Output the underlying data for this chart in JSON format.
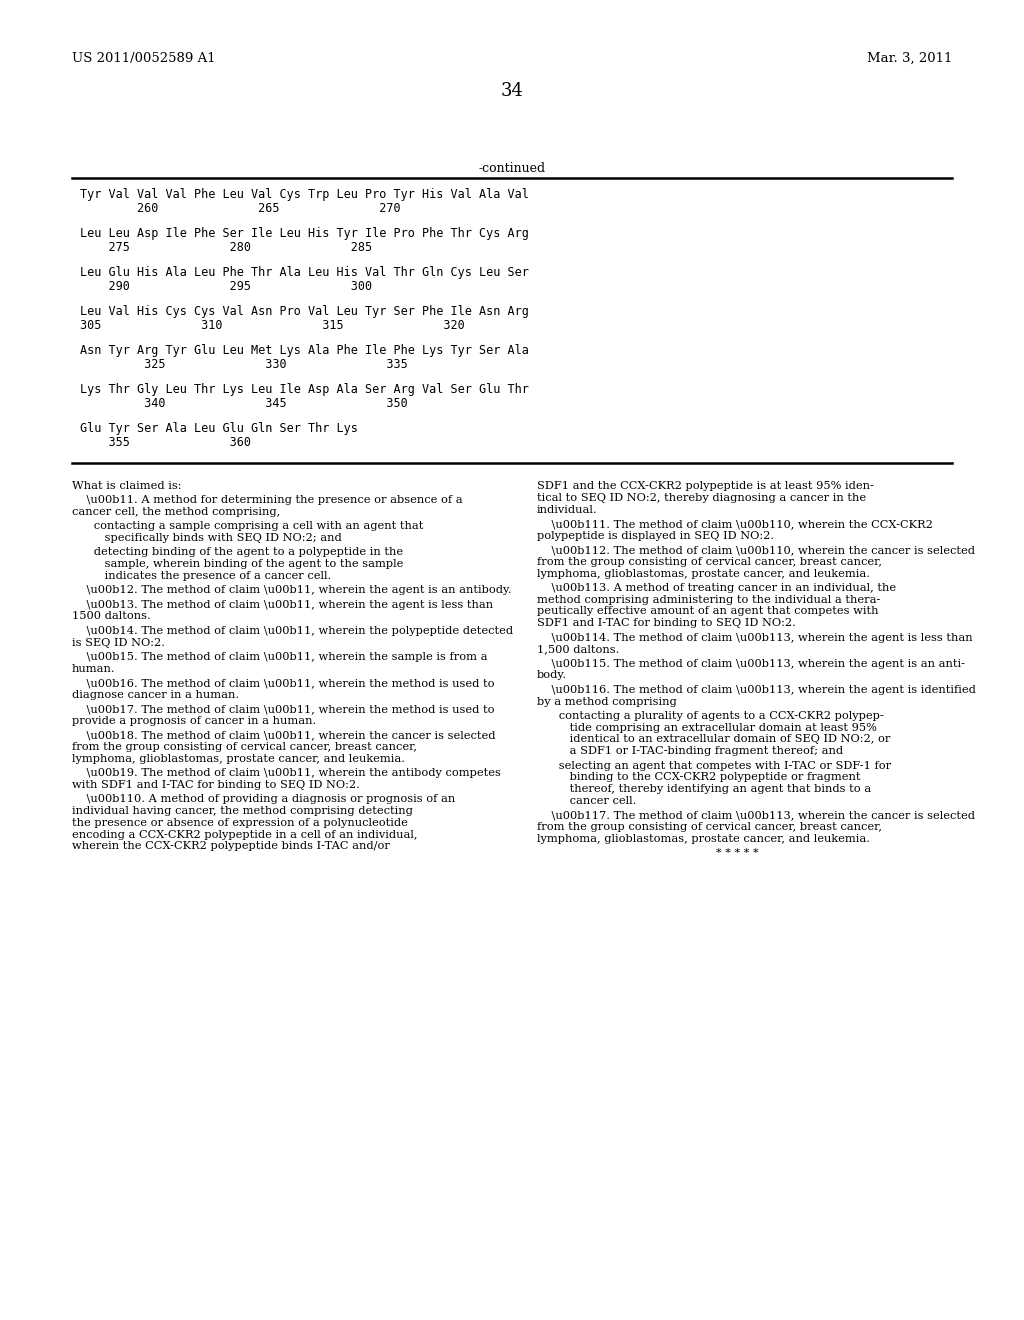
{
  "header_left": "US 2011/0052589 A1",
  "header_right": "Mar. 3, 2011",
  "page_number": "34",
  "continued_label": "-continued",
  "sequence_lines": [
    [
      "Tyr Val Val Val Phe Leu Val Cys Trp Leu Pro Tyr His Val Ala Val",
      "        260              265              270"
    ],
    [
      "Leu Leu Asp Ile Phe Ser Ile Leu His Tyr Ile Pro Phe Thr Cys Arg",
      "    275              280              285"
    ],
    [
      "Leu Glu His Ala Leu Phe Thr Ala Leu His Val Thr Gln Cys Leu Ser",
      "    290              295              300"
    ],
    [
      "Leu Val His Cys Cys Val Asn Pro Val Leu Tyr Ser Phe Ile Asn Arg",
      "305              310              315              320"
    ],
    [
      "Asn Tyr Arg Tyr Glu Leu Met Lys Ala Phe Ile Phe Lys Tyr Ser Ala",
      "         325              330              335"
    ],
    [
      "Lys Thr Gly Leu Thr Lys Leu Ile Asp Ala Ser Arg Val Ser Glu Thr",
      "         340              345              350"
    ],
    [
      "Glu Tyr Ser Ala Leu Glu Gln Ser Thr Lys",
      "    355              360"
    ]
  ],
  "claims_left": [
    [
      false,
      "What is claimed is:"
    ],
    [
      false,
      "    \\u00b11. A method for determining the presence or absence of a\ncancer cell, the method comprising,"
    ],
    [
      false,
      "      contacting a sample comprising a cell with an agent that\n         specifically binds with SEQ ID NO:2; and"
    ],
    [
      false,
      "      detecting binding of the agent to a polypeptide in the\n         sample, wherein binding of the agent to the sample\n         indicates the presence of a cancer cell."
    ],
    [
      false,
      "    \\u00b12. The method of claim \\u00b11, wherein the agent is an antibody."
    ],
    [
      false,
      "    \\u00b13. The method of claim \\u00b11, wherein the agent is less than\n1500 daltons."
    ],
    [
      false,
      "    \\u00b14. The method of claim \\u00b11, wherein the polypeptide detected\nis SEQ ID NO:2."
    ],
    [
      false,
      "    \\u00b15. The method of claim \\u00b11, wherein the sample is from a\nhuman."
    ],
    [
      false,
      "    \\u00b16. The method of claim \\u00b11, wherein the method is used to\ndiagnose cancer in a human."
    ],
    [
      false,
      "    \\u00b17. The method of claim \\u00b11, wherein the method is used to\nprovide a prognosis of cancer in a human."
    ],
    [
      false,
      "    \\u00b18. The method of claim \\u00b11, wherein the cancer is selected\nfrom the group consisting of cervical cancer, breast cancer,\nlymphoma, glioblastomas, prostate cancer, and leukemia."
    ],
    [
      false,
      "    \\u00b19. The method of claim \\u00b11, wherein the antibody competes\nwith SDF1 and I-TAC for binding to SEQ ID NO:2."
    ],
    [
      false,
      "    \\u00b110. A method of providing a diagnosis or prognosis of an\nindividual having cancer, the method comprising detecting\nthe presence or absence of expression of a polynucleotide\nencoding a CCX-CKR2 polypeptide in a cell of an individual,\nwherein the CCX-CKR2 polypeptide binds I-TAC and/or"
    ]
  ],
  "claims_right": [
    [
      false,
      "SDF1 and the CCX-CKR2 polypeptide is at least 95% iden-\ntical to SEQ ID NO:2, thereby diagnosing a cancer in the\nindividual."
    ],
    [
      false,
      "    \\u00b111. The method of claim \\u00b110, wherein the CCX-CKR2\npolypeptide is displayed in SEQ ID NO:2."
    ],
    [
      false,
      "    \\u00b112. The method of claim \\u00b110, wherein the cancer is selected\nfrom the group consisting of cervical cancer, breast cancer,\nlymphoma, glioblastomas, prostate cancer, and leukemia."
    ],
    [
      false,
      "    \\u00b113. A method of treating cancer in an individual, the\nmethod comprising administering to the individual a thera-\npeutically effective amount of an agent that competes with\nSDF1 and I-TAC for binding to SEQ ID NO:2."
    ],
    [
      false,
      "    \\u00b114. The method of claim \\u00b113, wherein the agent is less than\n1,500 daltons."
    ],
    [
      false,
      "    \\u00b115. The method of claim \\u00b113, wherein the agent is an anti-\nbody."
    ],
    [
      false,
      "    \\u00b116. The method of claim \\u00b113, wherein the agent is identified\nby a method comprising"
    ],
    [
      false,
      "      contacting a plurality of agents to a CCX-CKR2 polypep-\n         tide comprising an extracellular domain at least 95%\n         identical to an extracellular domain of SEQ ID NO:2, or\n         a SDF1 or I-TAC-binding fragment thereof; and"
    ],
    [
      false,
      "      selecting an agent that competes with I-TAC or SDF-1 for\n         binding to the CCX-CKR2 polypeptide or fragment\n         thereof, thereby identifying an agent that binds to a\n         cancer cell."
    ],
    [
      false,
      "    \\u00b117. The method of claim \\u00b113, wherein the cancer is selected\nfrom the group consisting of cervical cancer, breast cancer,\nlymphoma, glioblastomas, prostate cancer, and leukemia."
    ],
    [
      false,
      "* * * * *"
    ]
  ],
  "bg_color": "#ffffff",
  "text_color": "#000000"
}
